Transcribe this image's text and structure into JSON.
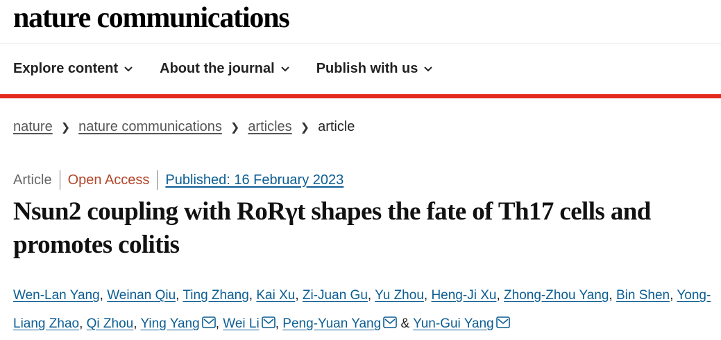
{
  "header": {
    "logo": "nature communications"
  },
  "nav": [
    {
      "label": "Explore content"
    },
    {
      "label": "About the journal"
    },
    {
      "label": "Publish with us"
    }
  ],
  "breadcrumb": [
    {
      "label": "nature",
      "link": true
    },
    {
      "label": "nature communications",
      "link": true
    },
    {
      "label": "articles",
      "link": true
    },
    {
      "label": "article",
      "link": false
    }
  ],
  "meta": {
    "type": "Article",
    "access": "Open Access",
    "published": "Published: 16 February 2023"
  },
  "title": "Nsun2 coupling with RoRγt shapes the fate of Th17 cells and promotes colitis",
  "authors": [
    {
      "name": "Wen-Lan Yang",
      "mail": false
    },
    {
      "name": "Weinan Qiu",
      "mail": false
    },
    {
      "name": "Ting Zhang",
      "mail": false
    },
    {
      "name": "Kai Xu",
      "mail": false
    },
    {
      "name": "Zi-Juan Gu",
      "mail": false
    },
    {
      "name": "Yu Zhou",
      "mail": false
    },
    {
      "name": "Heng-Ji Xu",
      "mail": false
    },
    {
      "name": "Zhong-Zhou Yang",
      "mail": false
    },
    {
      "name": "Bin Shen",
      "mail": false
    },
    {
      "name": "Yong-Liang Zhao",
      "mail": false
    },
    {
      "name": "Qi Zhou",
      "mail": false
    },
    {
      "name": "Ying Yang",
      "mail": true
    },
    {
      "name": "Wei Li",
      "mail": true
    },
    {
      "name": "Peng-Yuan Yang",
      "mail": true
    },
    {
      "name": "Yun-Gui Yang",
      "mail": true
    }
  ],
  "authors_last_sep": "&",
  "colors": {
    "accent_red": "#e32a1c",
    "link_blue": "#0b5d93",
    "open_access": "#b2472a"
  }
}
